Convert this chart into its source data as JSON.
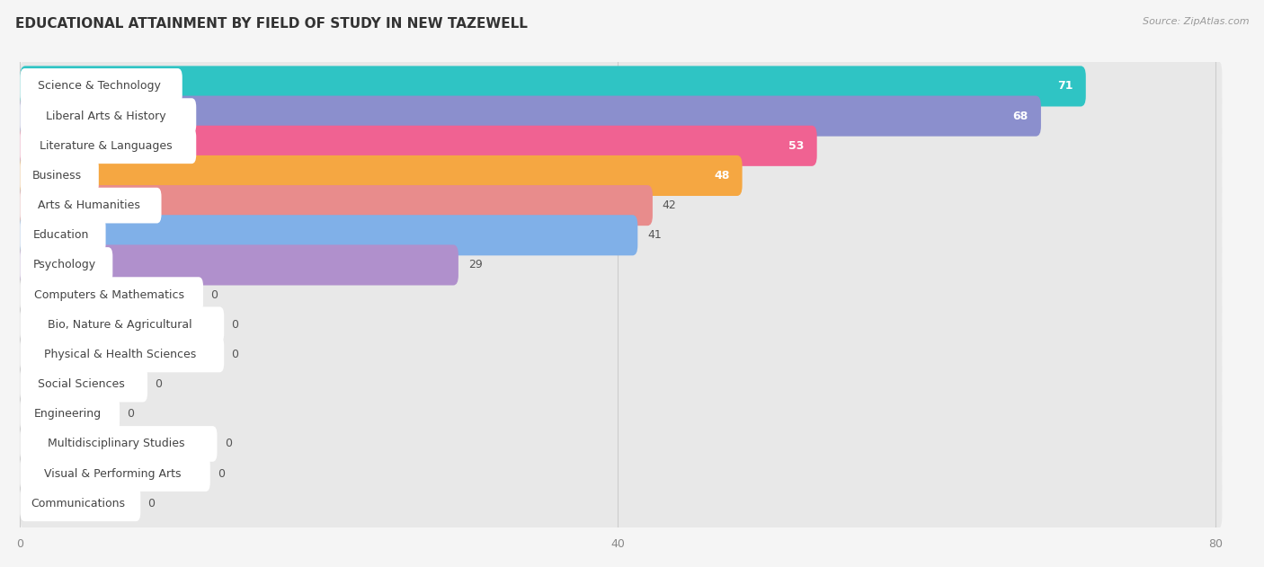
{
  "title": "EDUCATIONAL ATTAINMENT BY FIELD OF STUDY IN NEW TAZEWELL",
  "source": "Source: ZipAtlas.com",
  "categories": [
    "Science & Technology",
    "Liberal Arts & History",
    "Literature & Languages",
    "Business",
    "Arts & Humanities",
    "Education",
    "Psychology",
    "Computers & Mathematics",
    "Bio, Nature & Agricultural",
    "Physical & Health Sciences",
    "Social Sciences",
    "Engineering",
    "Multidisciplinary Studies",
    "Visual & Performing Arts",
    "Communications"
  ],
  "values": [
    71,
    68,
    53,
    48,
    42,
    41,
    29,
    0,
    0,
    0,
    0,
    0,
    0,
    0,
    0
  ],
  "bar_colors": [
    "#2fc4c4",
    "#8b8fcd",
    "#f06292",
    "#f5a742",
    "#e88c8c",
    "#80b0e8",
    "#b090cc",
    "#4eccc4",
    "#9090d8",
    "#f07898",
    "#f5bb78",
    "#e8a0a0",
    "#9ab8e8",
    "#b898d0",
    "#5ecece"
  ],
  "xlim": [
    0,
    80
  ],
  "xticks": [
    0,
    40,
    80
  ],
  "background_color": "#f5f5f5",
  "row_bg_color": "#ebebeb",
  "title_fontsize": 11,
  "label_fontsize": 9,
  "value_fontsize": 9
}
